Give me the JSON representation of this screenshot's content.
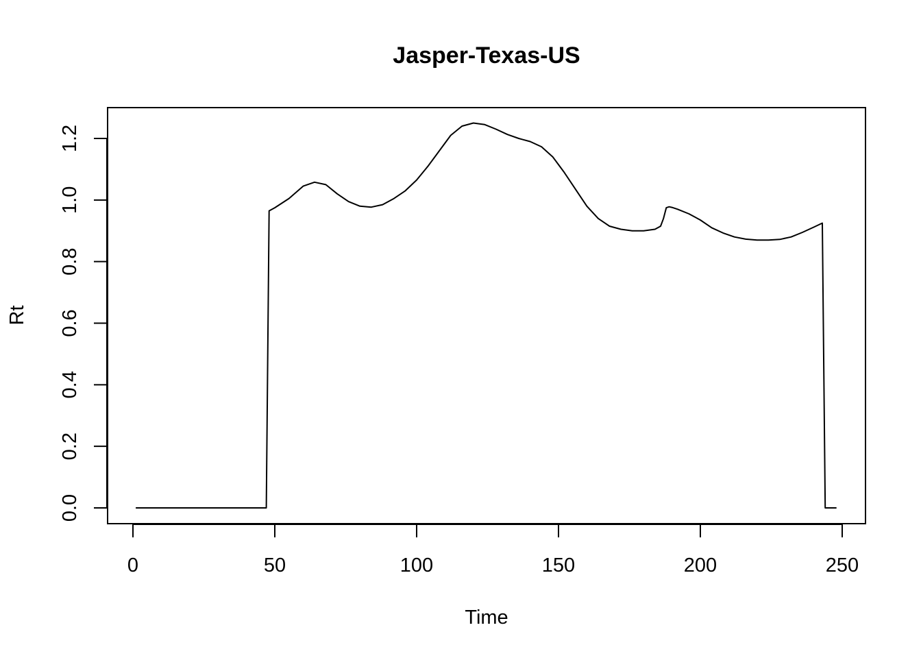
{
  "chart_data": {
    "type": "line",
    "title": "Jasper-Texas-US",
    "xlabel": "Time",
    "ylabel": "Rt",
    "xlim": [
      0,
      250
    ],
    "ylim": [
      0,
      1.2
    ],
    "x_ticks": [
      0,
      50,
      100,
      150,
      200,
      250
    ],
    "x_tick_labels": [
      "0",
      "50",
      "100",
      "150",
      "200",
      "250"
    ],
    "y_ticks": [
      0,
      0.2,
      0.4,
      0.6,
      0.8,
      1.0,
      1.2
    ],
    "y_tick_labels": [
      "0.0",
      "0.2",
      "0.4",
      "0.6",
      "0.8",
      "1.0",
      "1.2"
    ],
    "grid": false,
    "legend": "none",
    "color": "#000000",
    "series": [
      {
        "x": [
          1,
          10,
          20,
          30,
          40,
          47,
          48,
          50,
          55,
          60,
          64,
          68,
          72,
          76,
          80,
          84,
          88,
          92,
          96,
          100,
          104,
          108,
          112,
          116,
          120,
          124,
          128,
          132,
          136,
          140,
          144,
          148,
          152,
          156,
          160,
          164,
          168,
          172,
          176,
          180,
          184,
          186,
          187,
          188,
          189,
          190,
          192,
          196,
          200,
          204,
          208,
          212,
          216,
          220,
          224,
          228,
          232,
          236,
          240,
          243,
          244,
          248
        ],
        "y": [
          0,
          0,
          0,
          0,
          0,
          0,
          0.965,
          0.975,
          1.005,
          1.045,
          1.058,
          1.05,
          1.02,
          0.995,
          0.98,
          0.977,
          0.985,
          1.005,
          1.03,
          1.065,
          1.11,
          1.16,
          1.21,
          1.24,
          1.25,
          1.245,
          1.23,
          1.213,
          1.2,
          1.19,
          1.173,
          1.14,
          1.09,
          1.035,
          0.98,
          0.94,
          0.915,
          0.905,
          0.9,
          0.9,
          0.905,
          0.915,
          0.94,
          0.975,
          0.978,
          0.976,
          0.97,
          0.955,
          0.935,
          0.91,
          0.893,
          0.88,
          0.873,
          0.87,
          0.87,
          0.872,
          0.88,
          0.895,
          0.912,
          0.925,
          0,
          0
        ]
      }
    ]
  }
}
